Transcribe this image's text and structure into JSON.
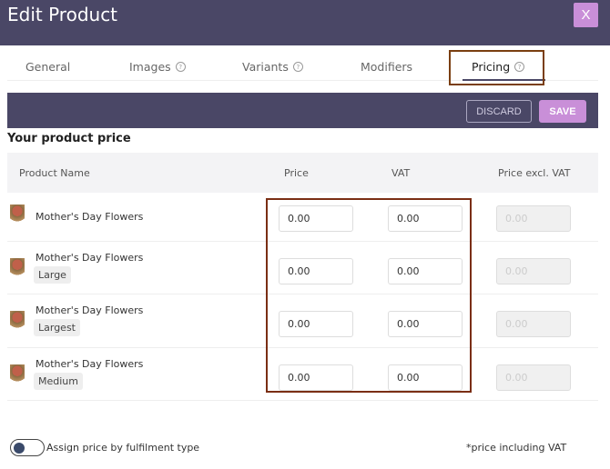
{
  "header": {
    "title": "Edit Product",
    "close_label": "X"
  },
  "tabs": [
    {
      "label": "General",
      "help": false
    },
    {
      "label": "Images",
      "help": true
    },
    {
      "label": "Variants",
      "help": true
    },
    {
      "label": "Modifiers",
      "help": false
    },
    {
      "label": "Pricing",
      "help": true,
      "active": true
    }
  ],
  "toolbar": {
    "discard_label": "DISCARD",
    "save_label": "SAVE"
  },
  "section_title": "Your product price",
  "table": {
    "columns": [
      "Product Name",
      "Price",
      "VAT",
      "Price excl. VAT"
    ],
    "rows": [
      {
        "name": "Mother's Day Flowers",
        "variant": "",
        "price": "0.00",
        "vat": "0.00",
        "excl": "0.00"
      },
      {
        "name": "Mother's Day Flowers",
        "variant": "Large",
        "price": "0.00",
        "vat": "0.00",
        "excl": "0.00"
      },
      {
        "name": "Mother's Day Flowers",
        "variant": "Largest",
        "price": "0.00",
        "vat": "0.00",
        "excl": "0.00"
      },
      {
        "name": "Mother's Day Flowers",
        "variant": "Medium",
        "price": "0.00",
        "vat": "0.00",
        "excl": "0.00"
      }
    ]
  },
  "footer": {
    "toggle_label": "Assign price by fulfilment type",
    "toggle_on": false,
    "note": "*price including VAT"
  },
  "colors": {
    "header": "#4a4766",
    "accent": "#c98fd8",
    "highlight": "#7a2e14"
  }
}
